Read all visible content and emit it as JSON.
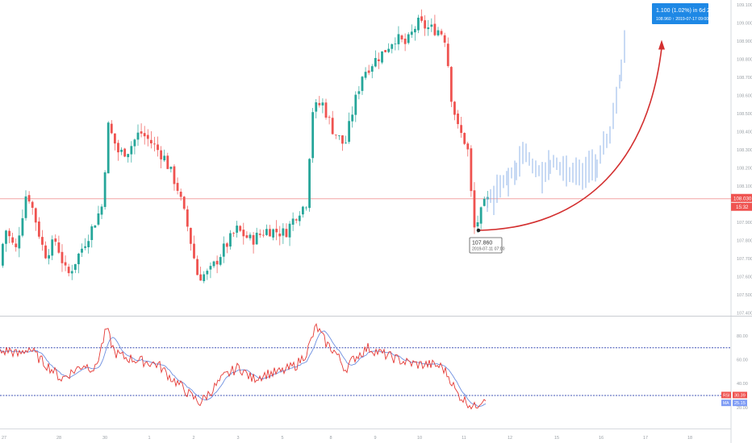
{
  "colors": {
    "up": "#26a69a",
    "down": "#ef5350",
    "projection": "#90b4e8",
    "arrow": "#d32f2f",
    "price_line": "#f2a3a3",
    "rsi": "#e53935",
    "rsi_ma": "#6d8fe0",
    "band": "#3f51b5",
    "axis_text": "#9aa0a6",
    "tag_blue": "#1e88e5",
    "tag_red": "#ef5350",
    "tag_ma": "#7f9cf5"
  },
  "price_axis": {
    "ticks": [
      "109.100",
      "109.000",
      "108.900",
      "108.800",
      "108.700",
      "108.600",
      "108.500",
      "108.400",
      "108.300",
      "108.200",
      "108.100",
      "108.000",
      "107.900",
      "107.800",
      "107.700",
      "107.600",
      "107.500",
      "107.400"
    ],
    "current_price_label": "108.030",
    "countdown_label": "15:32"
  },
  "rsi_axis": {
    "ticks": [
      "80.00",
      "60.00",
      "40.00",
      "20.00"
    ],
    "rsi_tag": "RSI",
    "rsi_value": "30.39",
    "ma_tag": "MA",
    "ma_value": "25.15"
  },
  "date_axis": {
    "labels": [
      "27",
      "28",
      "30",
      "1",
      "2",
      "3",
      "5",
      "8",
      "9",
      "10",
      "11",
      "12",
      "15",
      "16",
      "17",
      "18"
    ]
  },
  "annotations": {
    "low_price": "107.860",
    "low_time": "2019-07-11 07:00",
    "measure_line1": "1.100 (1.02%) in 6d 2h",
    "measure_line2": "108.960 ↑ 2019-07-17 09:00"
  },
  "chart_data": [
    {
      "type": "candlestick",
      "description_source": "main price pane",
      "ylim": [
        107.38,
        109.12
      ],
      "close_estimates": [
        {
          "x": "27",
          "close": 107.68
        },
        {
          "x": "28",
          "close": 107.6
        },
        {
          "x": "30",
          "close": 108.4
        },
        {
          "x": "1",
          "close": 108.2
        },
        {
          "x": "2",
          "close": 107.55
        },
        {
          "x": "3",
          "close": 107.75
        },
        {
          "x": "5",
          "close": 107.82
        },
        {
          "x": "8",
          "close": 108.73
        },
        {
          "x": "9",
          "close": 108.82
        },
        {
          "x": "10",
          "close": 109.02
        },
        {
          "x": "11",
          "close": 107.86
        },
        {
          "x": "12",
          "close": 108.02
        }
      ],
      "projection": {
        "from": 107.86,
        "to": 108.96,
        "change": "1.100 (1.02%)"
      },
      "current_price": 108.03
    },
    {
      "type": "line",
      "description_source": "RSI pane",
      "ylim": [
        10,
        92
      ],
      "bands": [
        70,
        30
      ],
      "series": [
        {
          "name": "RSI",
          "last": 30.39
        },
        {
          "name": "MA",
          "last": 25.15
        }
      ]
    }
  ]
}
